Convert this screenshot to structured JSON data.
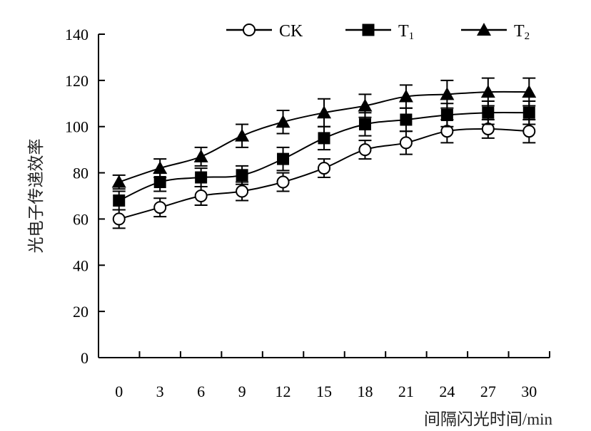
{
  "chart_data": {
    "type": "line",
    "xlabel": "间隔闪光时间/min",
    "ylabel": "光电子传递效率",
    "x": [
      0,
      3,
      6,
      9,
      12,
      15,
      18,
      21,
      24,
      27,
      30
    ],
    "xlim": [
      -1.5,
      31.5
    ],
    "ylim": [
      0,
      140
    ],
    "yticks": [
      0,
      20,
      40,
      60,
      80,
      100,
      120,
      140
    ],
    "grid": false,
    "legend_position": "top",
    "series": [
      {
        "name": "CK",
        "marker": "circle-open",
        "values": [
          60,
          65,
          70,
          72,
          76,
          82,
          90,
          93,
          98,
          99,
          98
        ],
        "errors": [
          4,
          4,
          4,
          4,
          4,
          4,
          4,
          5,
          5,
          4,
          5
        ]
      },
      {
        "name": "T1",
        "name_base": "T",
        "name_sub": "1",
        "marker": "square-filled",
        "values": [
          68,
          76,
          78,
          79,
          86,
          95,
          101,
          103,
          105,
          106,
          106
        ],
        "errors": [
          4,
          4,
          4,
          4,
          5,
          5,
          5,
          5,
          5,
          5,
          5
        ]
      },
      {
        "name": "T2",
        "name_base": "T",
        "name_sub": "2",
        "marker": "triangle-filled",
        "values": [
          76,
          82,
          87,
          96,
          102,
          106,
          109,
          113,
          114,
          115,
          115
        ],
        "errors": [
          3,
          4,
          4,
          5,
          5,
          6,
          5,
          5,
          6,
          6,
          6
        ]
      }
    ]
  }
}
